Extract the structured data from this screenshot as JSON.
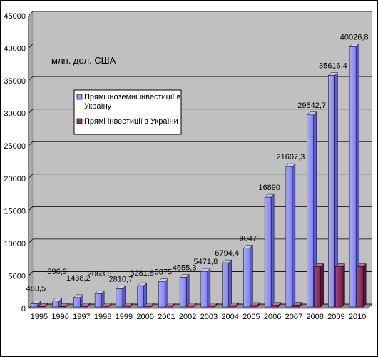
{
  "chart_data": {
    "type": "bar",
    "unit_label": "млн. дол. США",
    "categories": [
      "1995",
      "1996",
      "1997",
      "1998",
      "1999",
      "2000",
      "2001",
      "2002",
      "2003",
      "2004",
      "2005",
      "2006",
      "2007",
      "2008",
      "2009",
      "2010"
    ],
    "series": [
      {
        "name": "Прямі іноземні інвестиції в Україну",
        "color": "#9999ff",
        "values": [
          483.5,
          896.9,
          1438.2,
          2063.6,
          2810.7,
          3281.8,
          3875,
          4555.3,
          5471.8,
          6794.4,
          9047,
          16890,
          21607.3,
          29542.7,
          35616.4,
          40026.8
        ],
        "labels": [
          "483,5",
          "896,9",
          "1438,2",
          "2063,6",
          "2810,7",
          "3281,8",
          "3875",
          "4555,3",
          "5471,8",
          "6794,4",
          "9047",
          "16890",
          "21607,3",
          "29542,7",
          "35616,4",
          "40026,8"
        ]
      },
      {
        "name": "Прямі інвестиції з України",
        "color": "#993366",
        "values": [
          100,
          100,
          120,
          130,
          120,
          130,
          150,
          150,
          160,
          200,
          220,
          240,
          280,
          6200,
          6200,
          6200
        ]
      }
    ],
    "ylim": [
      0,
      45000
    ],
    "yticks": [
      0,
      5000,
      10000,
      15000,
      20000,
      25000,
      30000,
      35000,
      40000,
      45000
    ],
    "grid": true,
    "legend_position": "upper-left"
  }
}
